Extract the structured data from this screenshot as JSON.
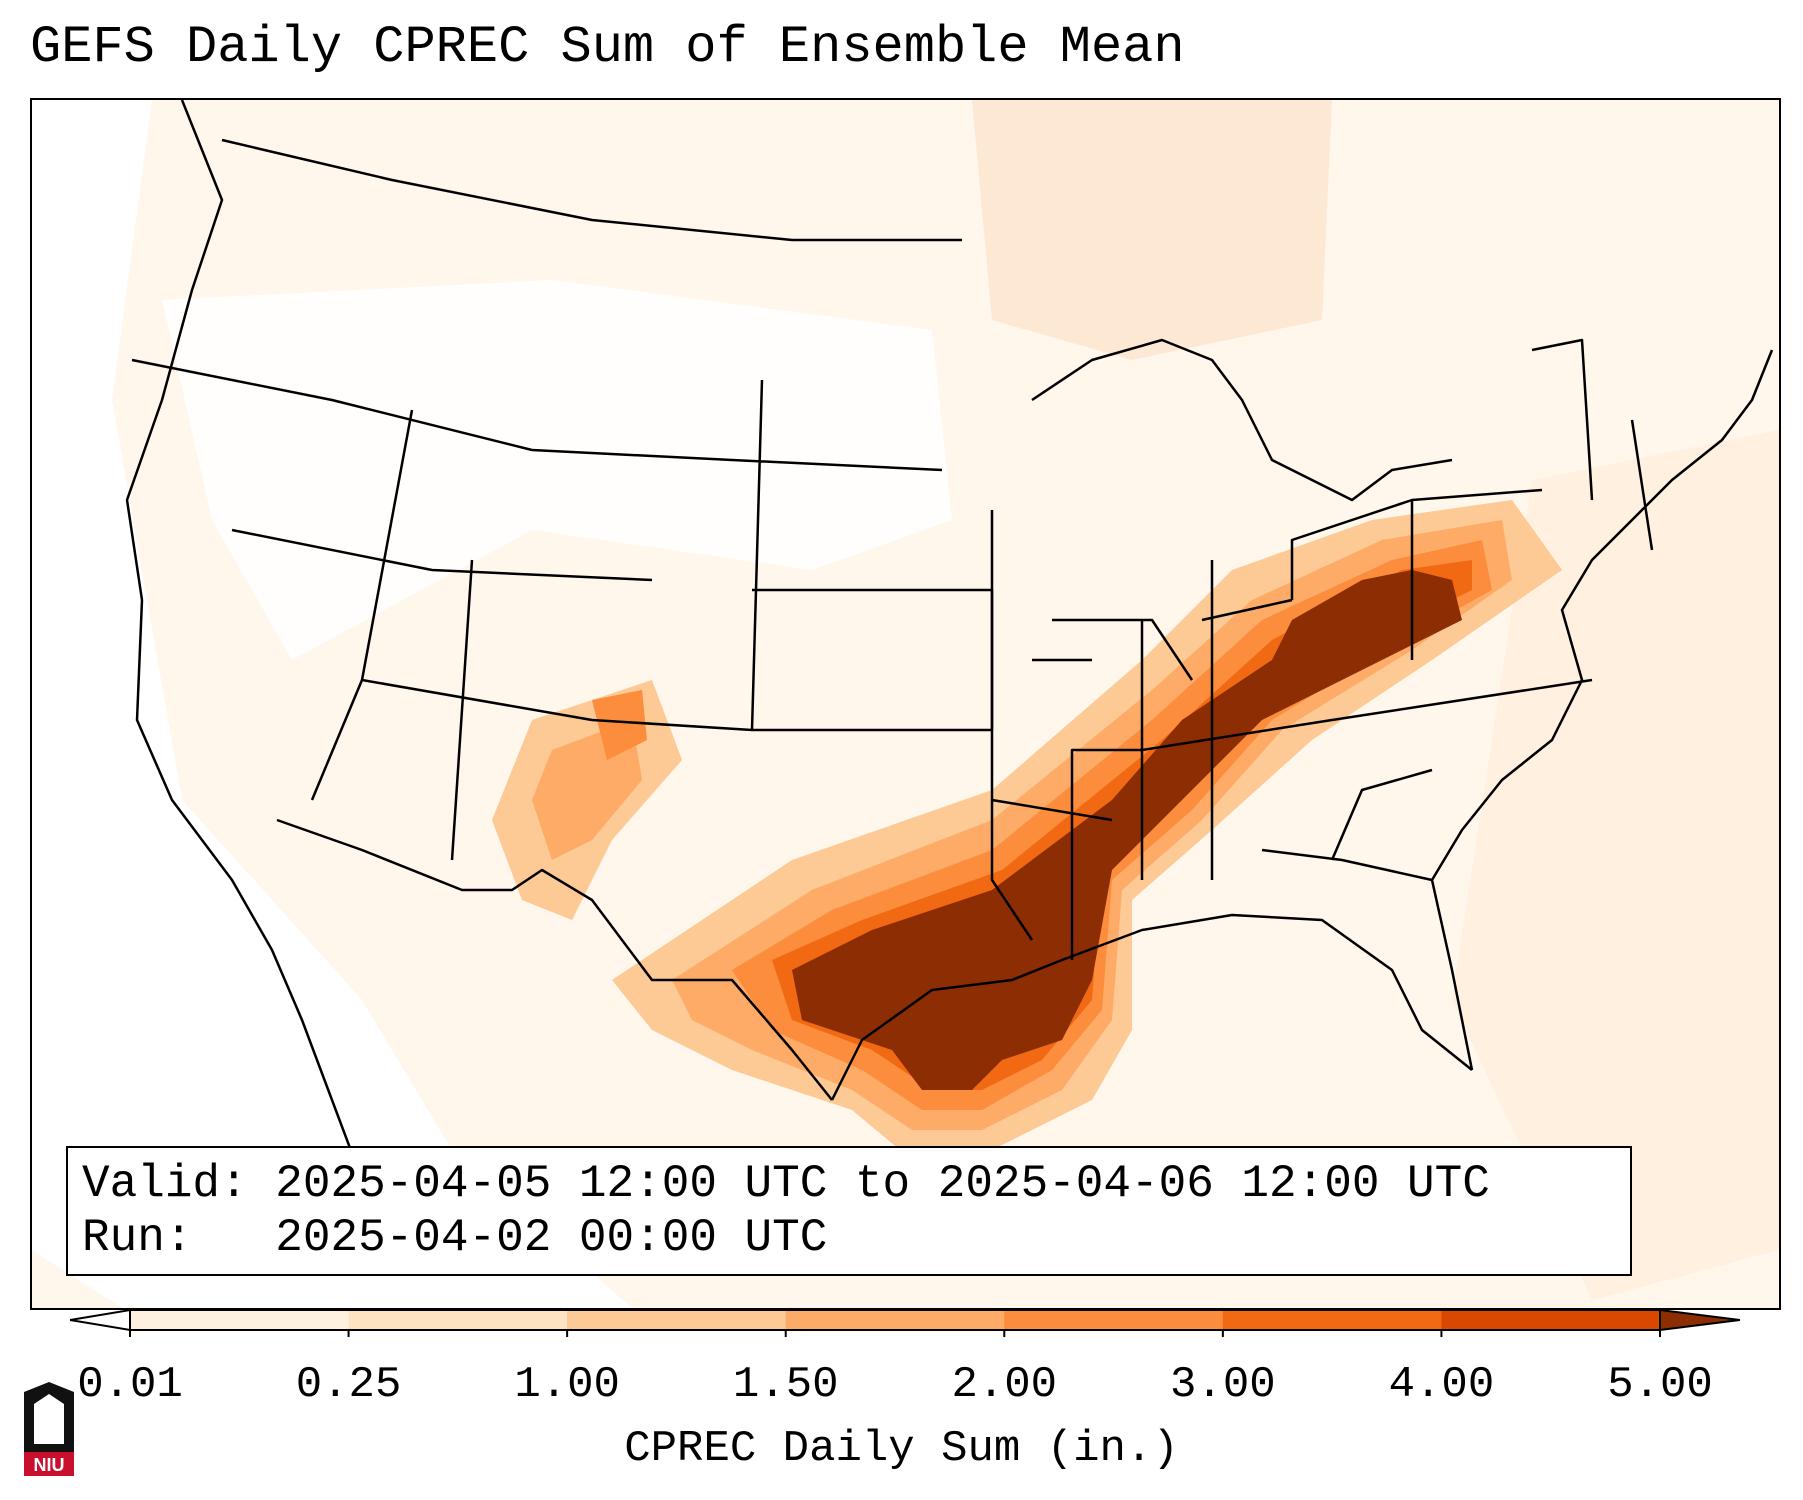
{
  "title": "GEFS Daily CPREC Sum of Ensemble Mean",
  "info": {
    "valid_label": "Valid:",
    "valid_value": "2025-04-05 12:00 UTC to 2025-04-06 12:00 UTC",
    "run_label": "Run:",
    "run_value": "2025-04-02 00:00 UTC"
  },
  "colorbar": {
    "label": "CPREC Daily Sum (in.)",
    "ticks": [
      "0.01",
      "0.25",
      "1.00",
      "1.50",
      "2.00",
      "3.00",
      "4.00",
      "5.00"
    ],
    "colors": [
      "#fff1e0",
      "#fee3c3",
      "#fdc995",
      "#fdab67",
      "#fb8d3d",
      "#f16913",
      "#d94801",
      "#8c2d04"
    ],
    "extend": "both"
  },
  "map": {
    "projection": "Lambert conformal",
    "region": "CONUS",
    "max_color": "#8c2d04"
  },
  "logo": {
    "text": "NIU",
    "primary_color": "#c8102e",
    "secondary_color": "#111111"
  }
}
